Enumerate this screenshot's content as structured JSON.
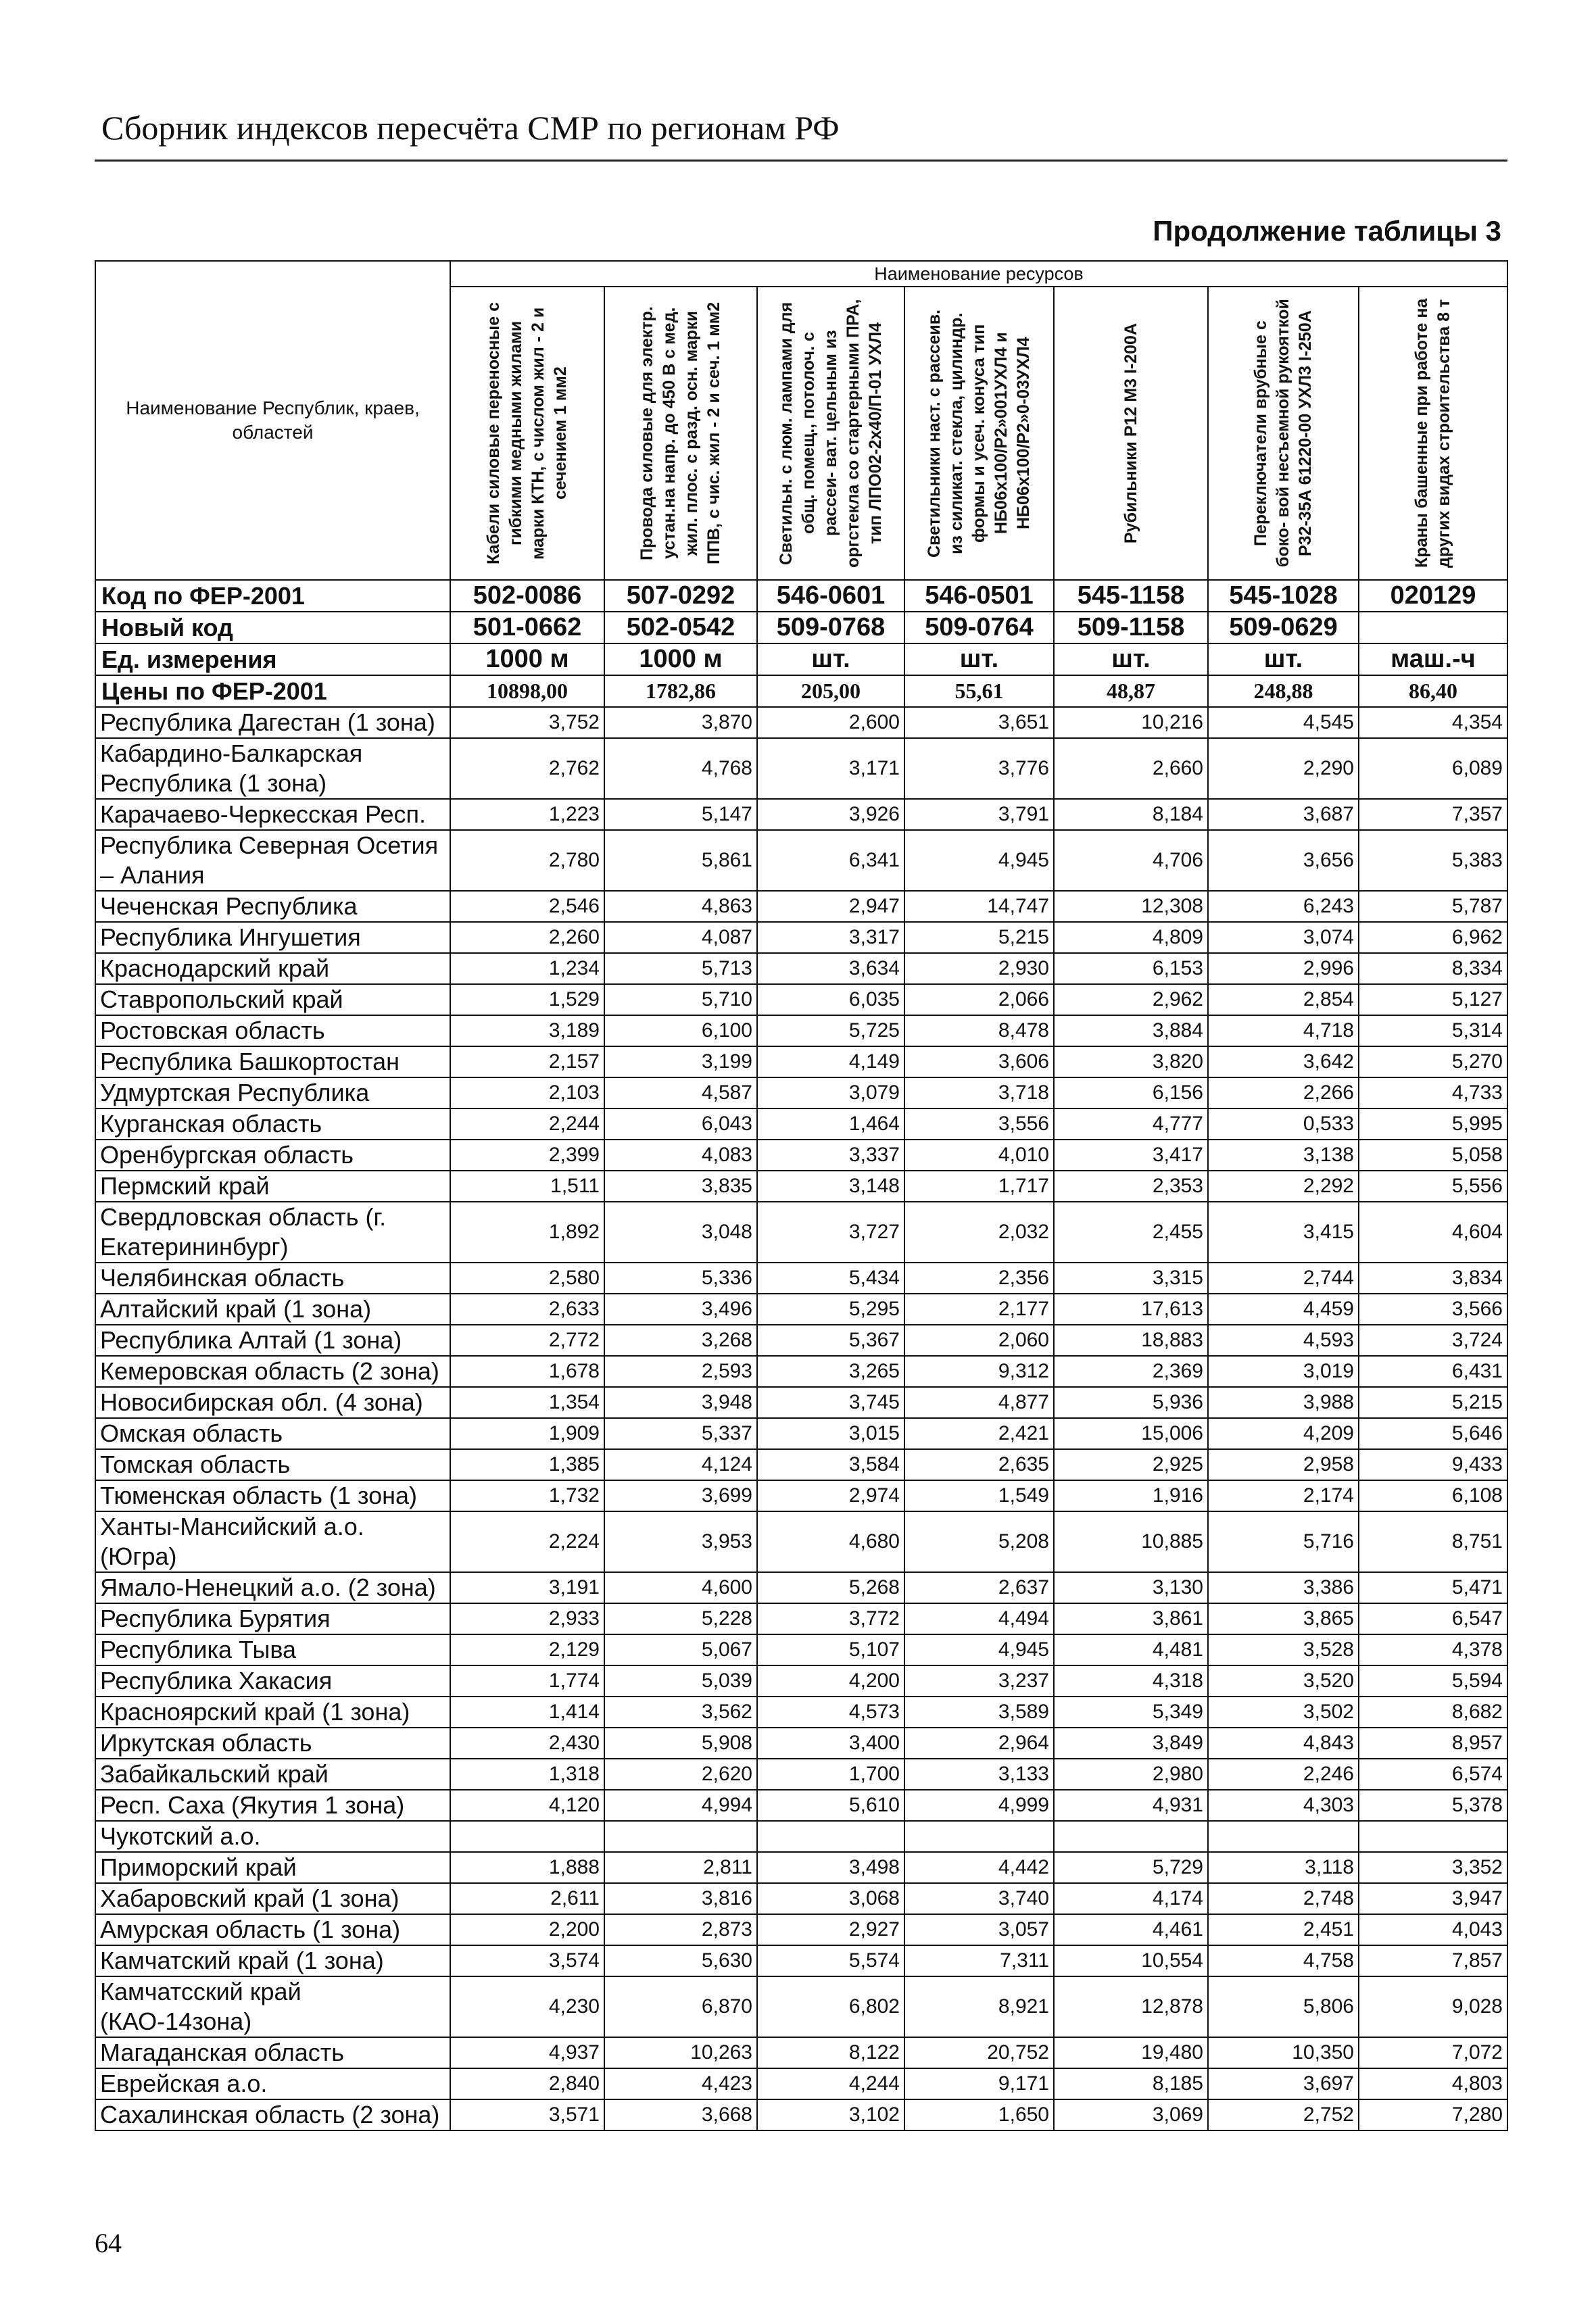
{
  "page": {
    "header": "Сборник индексов пересчёта СМР по регионам РФ",
    "continuation": "Продолжение таблицы 3",
    "page_number": "64"
  },
  "table": {
    "regions_header": "Наименование Республик, краев, областей",
    "resources_header": "Наименование ресурсов",
    "columns": [
      "Кабели силовые переносные с гибкими медными жилами марки КТН, с числом жил - 2 и сечением 1 мм2",
      "Провода силовые для электр. устан.на напр. до 450 В с мед. жил. плос. с разд. осн. марки ППВ, с чис. жил - 2 и сеч. 1 мм2",
      "Светильн. с люм. лампами для общ. помещ., потолоч. с рассеи- ват. цельным из оргстекла со стартерными ПРА, тип ЛПО02-2х40/П-01 УХЛ4",
      "Светильники наст. с рассеив. из силикат. стекла, цилиндр. формы и усеч. конуса тип НБ06х100/Р2»001УХЛ4 и НБ06х100/Р2»0-03УХЛ4",
      "Рубильники Р12 М3 I-200А",
      "Переключатели врубные с боко- вой несъемной рукояткой Р32-35А 61220-00 УХЛ3 I-250А",
      "Краны башенные при работе на других видах строительства 8 т"
    ],
    "meta": [
      {
        "label": "Код по ФЕР-2001",
        "values": [
          "502-0086",
          "507-0292",
          "546-0601",
          "546-0501",
          "545-1158",
          "545-1028",
          "020129"
        ]
      },
      {
        "label": "Новый код",
        "values": [
          "501-0662",
          "502-0542",
          "509-0768",
          "509-0764",
          "509-1158",
          "509-0629",
          ""
        ]
      },
      {
        "label": "Ед. измерения",
        "values": [
          "1000 м",
          "1000 м",
          "шт.",
          "шт.",
          "шт.",
          "шт.",
          "маш.-ч"
        ]
      },
      {
        "label": "Цены по ФЕР-2001",
        "values": [
          "10898,00",
          "1782,86",
          "205,00",
          "55,61",
          "48,87",
          "248,88",
          "86,40"
        ]
      }
    ],
    "rows": [
      {
        "name": "Республика Дагестан (1 зона)",
        "values": [
          "3,752",
          "3,870",
          "2,600",
          "3,651",
          "10,216",
          "4,545",
          "4,354"
        ]
      },
      {
        "name": "Кабардино-Балкарская Республика (1 зона)",
        "values": [
          "2,762",
          "4,768",
          "3,171",
          "3,776",
          "2,660",
          "2,290",
          "6,089"
        ]
      },
      {
        "name": "Карачаево-Черкесская Респ.",
        "values": [
          "1,223",
          "5,147",
          "3,926",
          "3,791",
          "8,184",
          "3,687",
          "7,357"
        ]
      },
      {
        "name": "Республика Северная Осетия – Алания",
        "values": [
          "2,780",
          "5,861",
          "6,341",
          "4,945",
          "4,706",
          "3,656",
          "5,383"
        ]
      },
      {
        "name": "Чеченская Республика",
        "values": [
          "2,546",
          "4,863",
          "2,947",
          "14,747",
          "12,308",
          "6,243",
          "5,787"
        ]
      },
      {
        "name": "Республика Ингушетия",
        "values": [
          "2,260",
          "4,087",
          "3,317",
          "5,215",
          "4,809",
          "3,074",
          "6,962"
        ]
      },
      {
        "name": "Краснодарский край",
        "values": [
          "1,234",
          "5,713",
          "3,634",
          "2,930",
          "6,153",
          "2,996",
          "8,334"
        ]
      },
      {
        "name": "Ставропольский край",
        "values": [
          "1,529",
          "5,710",
          "6,035",
          "2,066",
          "2,962",
          "2,854",
          "5,127"
        ]
      },
      {
        "name": "Ростовская область",
        "values": [
          "3,189",
          "6,100",
          "5,725",
          "8,478",
          "3,884",
          "4,718",
          "5,314"
        ]
      },
      {
        "name": "Республика Башкортостан",
        "values": [
          "2,157",
          "3,199",
          "4,149",
          "3,606",
          "3,820",
          "3,642",
          "5,270"
        ]
      },
      {
        "name": "Удмуртская Республика",
        "values": [
          "2,103",
          "4,587",
          "3,079",
          "3,718",
          "6,156",
          "2,266",
          "4,733"
        ]
      },
      {
        "name": "Курганская область",
        "values": [
          "2,244",
          "6,043",
          "1,464",
          "3,556",
          "4,777",
          "0,533",
          "5,995"
        ]
      },
      {
        "name": "Оренбургская область",
        "values": [
          "2,399",
          "4,083",
          "3,337",
          "4,010",
          "3,417",
          "3,138",
          "5,058"
        ]
      },
      {
        "name": "Пермский край",
        "values": [
          "1,511",
          "3,835",
          "3,148",
          "1,717",
          "2,353",
          "2,292",
          "5,556"
        ]
      },
      {
        "name": "Свердловская область (г. Екатерининбург)",
        "values": [
          "1,892",
          "3,048",
          "3,727",
          "2,032",
          "2,455",
          "3,415",
          "4,604"
        ]
      },
      {
        "name": "Челябинская область",
        "values": [
          "2,580",
          "5,336",
          "5,434",
          "2,356",
          "3,315",
          "2,744",
          "3,834"
        ]
      },
      {
        "name": "Алтайский край (1 зона)",
        "values": [
          "2,633",
          "3,496",
          "5,295",
          "2,177",
          "17,613",
          "4,459",
          "3,566"
        ]
      },
      {
        "name": "Республика Алтай (1 зона)",
        "values": [
          "2,772",
          "3,268",
          "5,367",
          "2,060",
          "18,883",
          "4,593",
          "3,724"
        ]
      },
      {
        "name": "Кемеровская область (2 зона)",
        "values": [
          "1,678",
          "2,593",
          "3,265",
          "9,312",
          "2,369",
          "3,019",
          "6,431"
        ]
      },
      {
        "name": "Новосибирская обл. (4 зона)",
        "values": [
          "1,354",
          "3,948",
          "3,745",
          "4,877",
          "5,936",
          "3,988",
          "5,215"
        ]
      },
      {
        "name": "Омская область",
        "values": [
          "1,909",
          "5,337",
          "3,015",
          "2,421",
          "15,006",
          "4,209",
          "5,646"
        ]
      },
      {
        "name": "Томская область",
        "values": [
          "1,385",
          "4,124",
          "3,584",
          "2,635",
          "2,925",
          "2,958",
          "9,433"
        ]
      },
      {
        "name": "Тюменская область (1 зона)",
        "values": [
          "1,732",
          "3,699",
          "2,974",
          "1,549",
          "1,916",
          "2,174",
          "6,108"
        ]
      },
      {
        "name": "Ханты-Мансийский а.о. (Югра)",
        "values": [
          "2,224",
          "3,953",
          "4,680",
          "5,208",
          "10,885",
          "5,716",
          "8,751"
        ]
      },
      {
        "name": "Ямало-Ненецкий а.о. (2 зона)",
        "values": [
          "3,191",
          "4,600",
          "5,268",
          "2,637",
          "3,130",
          "3,386",
          "5,471"
        ]
      },
      {
        "name": "Республика Бурятия",
        "values": [
          "2,933",
          "5,228",
          "3,772",
          "4,494",
          "3,861",
          "3,865",
          "6,547"
        ]
      },
      {
        "name": "Республика Тыва",
        "values": [
          "2,129",
          "5,067",
          "5,107",
          "4,945",
          "4,481",
          "3,528",
          "4,378"
        ]
      },
      {
        "name": "Республика Хакасия",
        "values": [
          "1,774",
          "5,039",
          "4,200",
          "3,237",
          "4,318",
          "3,520",
          "5,594"
        ]
      },
      {
        "name": "Красноярский край (1 зона)",
        "values": [
          "1,414",
          "3,562",
          "4,573",
          "3,589",
          "5,349",
          "3,502",
          "8,682"
        ]
      },
      {
        "name": "Иркутская область",
        "values": [
          "2,430",
          "5,908",
          "3,400",
          "2,964",
          "3,849",
          "4,843",
          "8,957"
        ]
      },
      {
        "name": "Забайкальский край",
        "values": [
          "1,318",
          "2,620",
          "1,700",
          "3,133",
          "2,980",
          "2,246",
          "6,574"
        ]
      },
      {
        "name": "Респ. Саха (Якутия 1 зона)",
        "values": [
          "4,120",
          "4,994",
          "5,610",
          "4,999",
          "4,931",
          "4,303",
          "5,378"
        ]
      },
      {
        "name": "Чукотский а.о.",
        "values": [
          "",
          "",
          "",
          "",
          "",
          "",
          ""
        ]
      },
      {
        "name": "Приморский край",
        "values": [
          "1,888",
          "2,811",
          "3,498",
          "4,442",
          "5,729",
          "3,118",
          "3,352"
        ]
      },
      {
        "name": "Хабаровский край (1 зона)",
        "values": [
          "2,611",
          "3,816",
          "3,068",
          "3,740",
          "4,174",
          "2,748",
          "3,947"
        ]
      },
      {
        "name": "Амурская область (1 зона)",
        "values": [
          "2,200",
          "2,873",
          "2,927",
          "3,057",
          "4,461",
          "2,451",
          "4,043"
        ]
      },
      {
        "name": "Камчатский край (1 зона)",
        "values": [
          "3,574",
          "5,630",
          "5,574",
          "7,311",
          "10,554",
          "4,758",
          "7,857"
        ]
      },
      {
        "name": "Камчатсский край (КАО-14зона)",
        "values": [
          "4,230",
          "6,870",
          "6,802",
          "8,921",
          "12,878",
          "5,806",
          "9,028"
        ]
      },
      {
        "name": "Магаданская область",
        "values": [
          "4,937",
          "10,263",
          "8,122",
          "20,752",
          "19,480",
          "10,350",
          "7,072"
        ]
      },
      {
        "name": "Еврейская а.о.",
        "values": [
          "2,840",
          "4,423",
          "4,244",
          "9,171",
          "8,185",
          "3,697",
          "4,803"
        ]
      },
      {
        "name": "Сахалинская область (2 зона)",
        "values": [
          "3,571",
          "3,668",
          "3,102",
          "1,650",
          "3,069",
          "2,752",
          "7,280"
        ]
      }
    ]
  }
}
